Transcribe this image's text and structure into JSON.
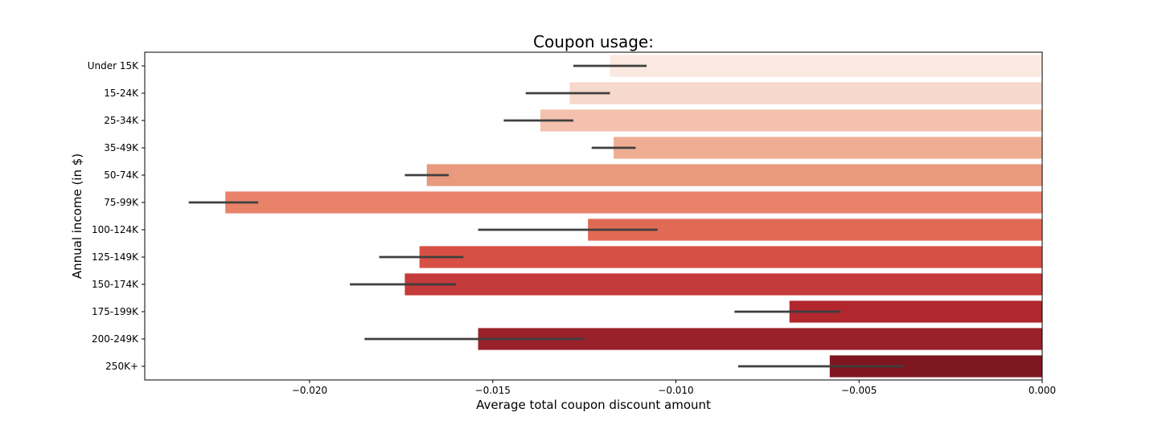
{
  "chart_data": {
    "type": "bar",
    "orientation": "horizontal",
    "title": "Coupon usage:",
    "xlabel": "Average total coupon discount amount",
    "ylabel": "Annual income (in $)",
    "categories": [
      "Under 15K",
      "15-24K",
      "25-34K",
      "35-49K",
      "50-74K",
      "75-99K",
      "100-124K",
      "125-149K",
      "150-174K",
      "175-199K",
      "200-249K",
      "250K+"
    ],
    "values": [
      -0.0118,
      -0.0129,
      -0.0137,
      -0.0117,
      -0.0168,
      -0.0223,
      -0.0124,
      -0.017,
      -0.0174,
      -0.0069,
      -0.0154,
      -0.0058
    ],
    "error_bars": [
      [
        -0.0128,
        -0.0108
      ],
      [
        -0.0141,
        -0.0118
      ],
      [
        -0.0147,
        -0.0128
      ],
      [
        -0.0123,
        -0.0111
      ],
      [
        -0.0174,
        -0.0162
      ],
      [
        -0.0233,
        -0.0214
      ],
      [
        -0.0154,
        -0.0105
      ],
      [
        -0.0181,
        -0.0158
      ],
      [
        -0.0189,
        -0.016
      ],
      [
        -0.0084,
        -0.0055
      ],
      [
        -0.0185,
        -0.0125
      ],
      [
        -0.0083,
        -0.0038
      ]
    ],
    "colors": [
      "#fbe9e1",
      "#f7d8cc",
      "#f3c1ad",
      "#efae94",
      "#e9997e",
      "#e8836a",
      "#e16a55",
      "#d85045",
      "#c53a3a",
      "#b2262e",
      "#99212a",
      "#7e1620"
    ],
    "error_color": "#3f3f3f",
    "xlim": [
      -0.0245,
      0.0
    ],
    "x_ticks": [
      -0.02,
      -0.015,
      -0.01,
      -0.005,
      0.0
    ],
    "x_tick_labels": [
      "−0.020",
      "−0.015",
      "−0.010",
      "−0.005",
      "0.000"
    ],
    "grid": false,
    "legend": "none"
  }
}
